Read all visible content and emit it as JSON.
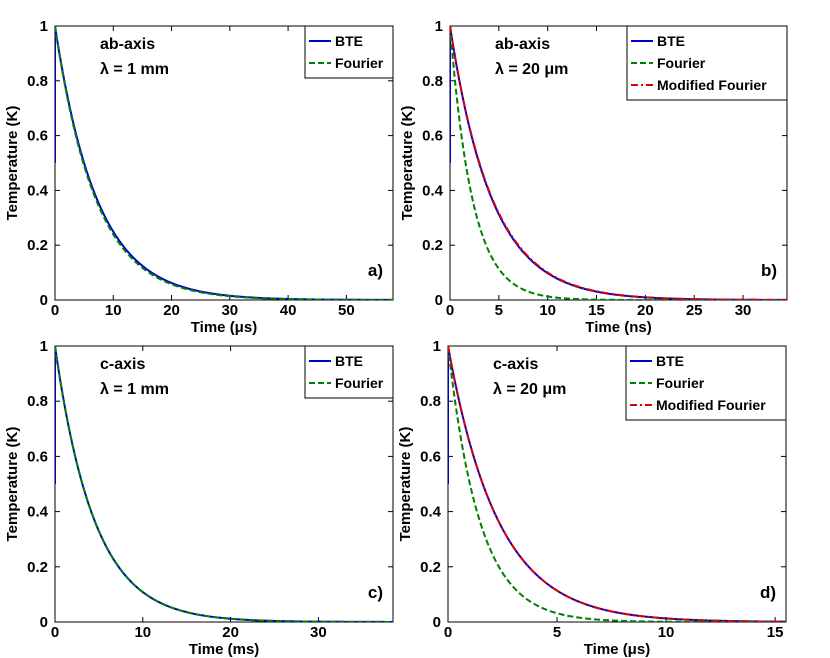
{
  "chart_data": [
    {
      "id": "a",
      "type": "line",
      "panel_label": "a)",
      "annotation_lines": [
        "ab-axis",
        "λ = 1 mm"
      ],
      "xlabel": "Time (μs)",
      "ylabel": "Temperature (K)",
      "xlim": [
        0,
        58
      ],
      "ylim": [
        0,
        1
      ],
      "xticks": [
        0,
        10,
        20,
        30,
        40,
        50
      ],
      "yticks": [
        0,
        0.2,
        0.4,
        0.6,
        0.8,
        1
      ],
      "ytick_labels": [
        "0",
        "0.2",
        "0.4",
        "0.6",
        "0.8",
        "1"
      ],
      "legend_position": "top-right",
      "series": [
        {
          "name": "BTE",
          "color": "#0000cc",
          "dash": "solid",
          "decay_constant": 7.2,
          "initial_dip": 0.5
        },
        {
          "name": "Fourier",
          "color": "#008000",
          "dash": "dashed",
          "decay_constant": 7.0
        }
      ]
    },
    {
      "id": "b",
      "type": "line",
      "panel_label": "b)",
      "annotation_lines": [
        "ab-axis",
        "λ = 20 μm"
      ],
      "xlabel": "Time (ns)",
      "ylabel": "Temperature (K)",
      "xlim": [
        0,
        34.5
      ],
      "ylim": [
        0,
        1
      ],
      "xticks": [
        0,
        5,
        10,
        15,
        20,
        25,
        30
      ],
      "yticks": [
        0,
        0.2,
        0.4,
        0.6,
        0.8,
        1
      ],
      "ytick_labels": [
        "0",
        "0.2",
        "0.4",
        "0.6",
        "0.8",
        "1"
      ],
      "legend_position": "top-right",
      "series": [
        {
          "name": "BTE",
          "color": "#0000cc",
          "dash": "solid",
          "decay_constant": 4.3,
          "initial_dip": 0.5
        },
        {
          "name": "Fourier",
          "color": "#008000",
          "dash": "dashed",
          "decay_constant": 2.3
        },
        {
          "name": "Modified Fourier",
          "color": "#e00000",
          "dash": "dashdot",
          "decay_constant": 4.35
        }
      ]
    },
    {
      "id": "c",
      "type": "line",
      "panel_label": "c)",
      "annotation_lines": [
        "c-axis",
        "λ = 1 mm"
      ],
      "xlabel": "Time (ms)",
      "ylabel": "Temperature (K)",
      "xlim": [
        0,
        38.5
      ],
      "ylim": [
        0,
        1
      ],
      "xticks": [
        0,
        10,
        20,
        30
      ],
      "yticks": [
        0,
        0.2,
        0.4,
        0.6,
        0.8,
        1
      ],
      "ytick_labels": [
        "0",
        "0.2",
        "0.4",
        "0.6",
        "0.8",
        "1"
      ],
      "legend_position": "top-right",
      "series": [
        {
          "name": "BTE",
          "color": "#0000cc",
          "dash": "solid",
          "decay_constant": 4.5,
          "initial_dip": 0.5
        },
        {
          "name": "Fourier",
          "color": "#008000",
          "dash": "dashed",
          "decay_constant": 4.5
        }
      ]
    },
    {
      "id": "d",
      "type": "line",
      "panel_label": "d)",
      "annotation_lines": [
        "c-axis",
        "λ = 20 μm"
      ],
      "xlabel": "Time (μs)",
      "ylabel": "Temperature (K)",
      "xlim": [
        0,
        15.5
      ],
      "ylim": [
        0,
        1
      ],
      "xticks": [
        0,
        5,
        10,
        15
      ],
      "yticks": [
        0,
        0.2,
        0.4,
        0.6,
        0.8,
        1
      ],
      "ytick_labels": [
        "0",
        "0.2",
        "0.4",
        "0.6",
        "0.8",
        "1"
      ],
      "legend_position": "top-right",
      "series": [
        {
          "name": "BTE",
          "color": "#0000cc",
          "dash": "solid",
          "decay_constant": 2.3,
          "initial_dip": 0.5
        },
        {
          "name": "Fourier",
          "color": "#008000",
          "dash": "dashed",
          "decay_constant": 1.45
        },
        {
          "name": "Modified Fourier",
          "color": "#e00000",
          "dash": "dashdot",
          "decay_constant": 2.3
        }
      ]
    }
  ]
}
